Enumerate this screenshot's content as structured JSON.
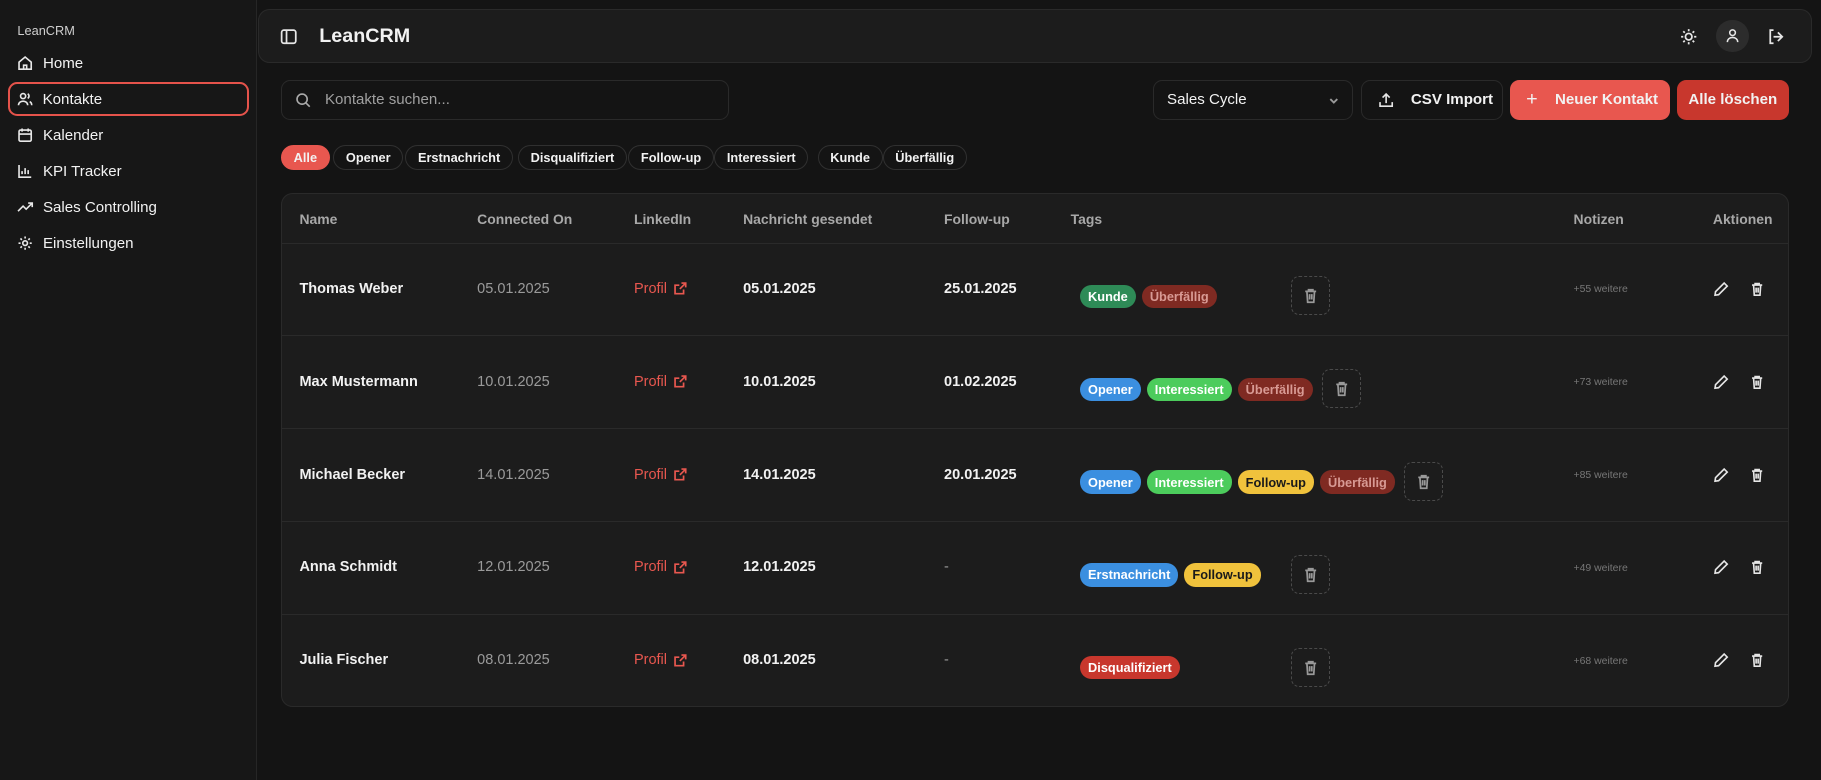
{
  "sidebar": {
    "brand": "LeanCRM",
    "items": [
      {
        "label": "Home",
        "icon": "home-icon"
      },
      {
        "label": "Kontakte",
        "icon": "users-icon",
        "active": true
      },
      {
        "label": "Kalender",
        "icon": "calendar-icon"
      },
      {
        "label": "KPI Tracker",
        "icon": "bar-chart-icon"
      },
      {
        "label": "Sales Controlling",
        "icon": "trending-icon"
      },
      {
        "label": "Einstellungen",
        "icon": "gear-icon"
      }
    ]
  },
  "header": {
    "title": "LeanCRM"
  },
  "toolbar": {
    "search_placeholder": "Kontakte suchen...",
    "select_value": "Sales Cycle",
    "csv_import": "CSV Import",
    "new_contact": "Neuer Kontakt",
    "delete_all": "Alle löschen"
  },
  "filters": [
    "Alle",
    "Opener",
    "Erstnachricht",
    "Disqualifiziert",
    "Follow-up",
    "Interessiert",
    "Kunde",
    "Überfällig"
  ],
  "colors": {
    "accent": "#e8574f",
    "danger": "#c8372d",
    "Kunde": "#2e8b57",
    "Überfällig": "#7f2a22",
    "Opener": "#3b8fe0",
    "Erstnachricht": "#3b8fe0",
    "Interessiert": "#4ccc5c",
    "Follow-up": "#f0c23c",
    "Disqualifiziert": "#c8372d"
  },
  "table": {
    "headers": [
      "Name",
      "Connected On",
      "LinkedIn",
      "Nachricht gesendet",
      "Follow-up",
      "Tags",
      "Notizen",
      "Aktionen"
    ],
    "rows": [
      {
        "name": "Thomas Weber",
        "connected": "05.01.2025",
        "linkedin": "Profil",
        "sent": "05.01.2025",
        "followup": "25.01.2025",
        "tags": [
          "Kunde",
          "Überfällig"
        ],
        "notes": "+55 weitere"
      },
      {
        "name": "Max Mustermann",
        "connected": "10.01.2025",
        "linkedin": "Profil",
        "sent": "10.01.2025",
        "followup": "01.02.2025",
        "tags": [
          "Opener",
          "Interessiert",
          "Überfällig"
        ],
        "notes": "+73 weitere"
      },
      {
        "name": "Michael Becker",
        "connected": "14.01.2025",
        "linkedin": "Profil",
        "sent": "14.01.2025",
        "followup": "20.01.2025",
        "tags": [
          "Opener",
          "Interessiert",
          "Follow-up",
          "Überfällig"
        ],
        "notes": "+85 weitere"
      },
      {
        "name": "Anna Schmidt",
        "connected": "12.01.2025",
        "linkedin": "Profil",
        "sent": "12.01.2025",
        "followup": "-",
        "tags": [
          "Erstnachricht",
          "Follow-up"
        ],
        "notes": "+49 weitere"
      },
      {
        "name": "Julia Fischer",
        "connected": "08.01.2025",
        "linkedin": "Profil",
        "sent": "08.01.2025",
        "followup": "-",
        "tags": [
          "Disqualifiziert"
        ],
        "notes": "+68 weitere"
      }
    ]
  }
}
